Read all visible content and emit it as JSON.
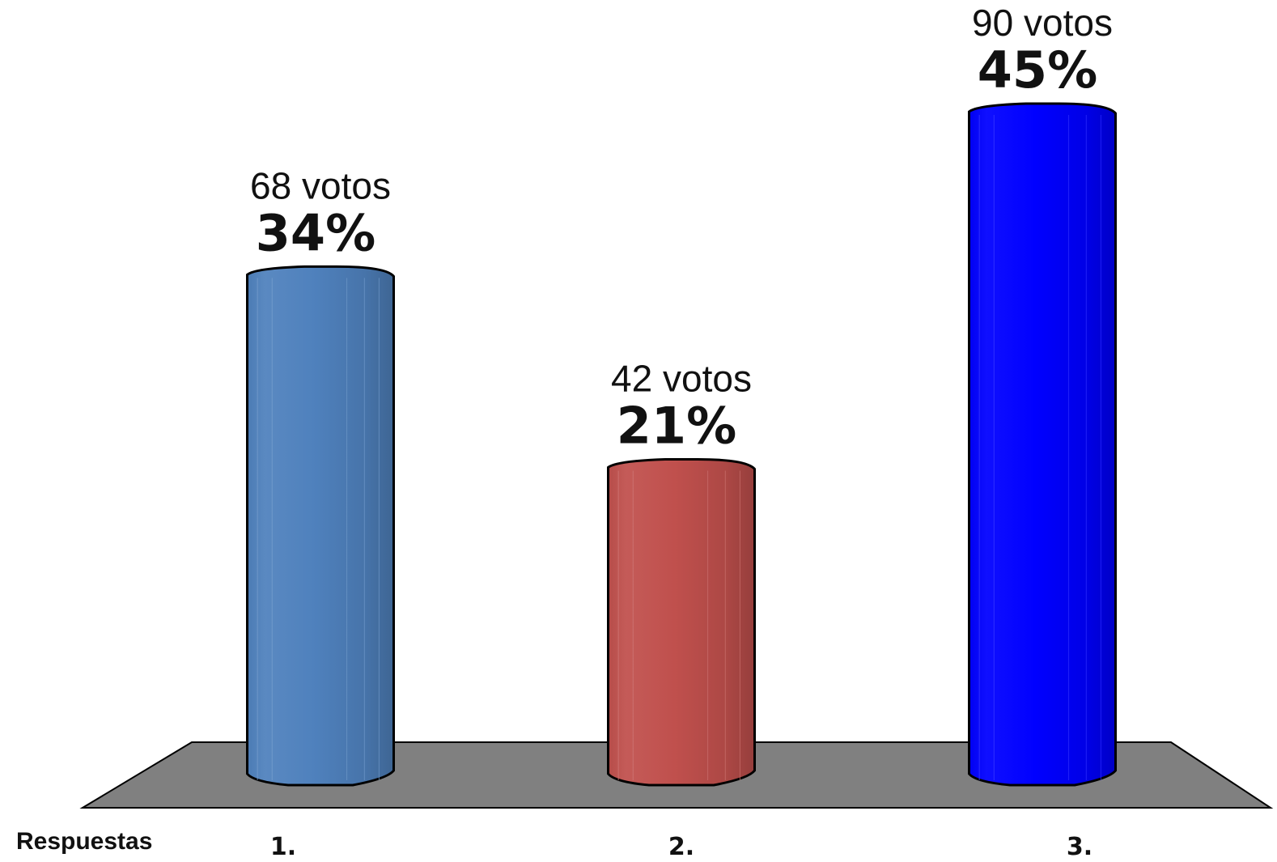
{
  "chart_data": {
    "type": "bar",
    "style": "3d-cylinder",
    "xlabel": "Respuestas",
    "ylabel": "",
    "categories": [
      "1.",
      "2.",
      "3."
    ],
    "series": [
      {
        "values": [
          68,
          42,
          90
        ],
        "percent_labels": [
          "34%",
          "21%",
          "45%"
        ],
        "value_labels": [
          "68 votos",
          "42 votos",
          "90 votos"
        ]
      }
    ],
    "percentages": [
      34,
      21,
      45
    ],
    "ylim": [
      0,
      90
    ],
    "grid": false,
    "legend": "none",
    "colors": [
      "#4f81bd",
      "#c0504d",
      "#0000ff"
    ],
    "floor_color": "#808080"
  }
}
